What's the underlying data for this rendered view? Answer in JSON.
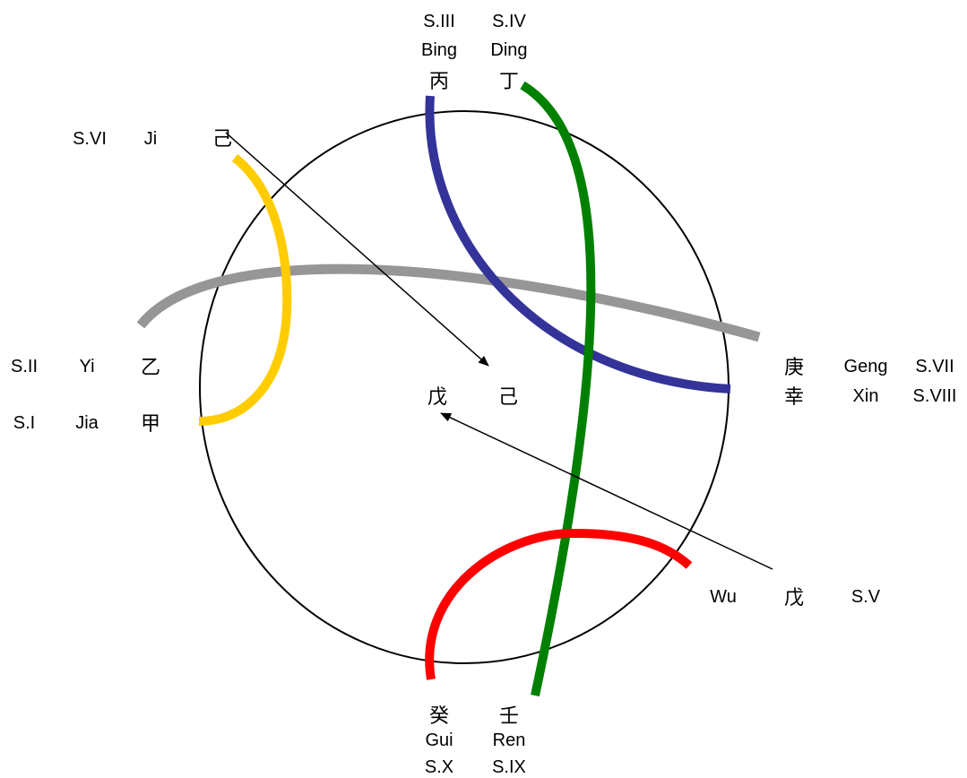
{
  "stems": {
    "jia": {
      "number": "S.I",
      "pinyin": "Jia",
      "char": "甲"
    },
    "yi": {
      "number": "S.II",
      "pinyin": "Yi",
      "char": "乙"
    },
    "bing": {
      "number": "S.III",
      "pinyin": "Bing",
      "char": "丙"
    },
    "ding": {
      "number": "S.IV",
      "pinyin": "Ding",
      "char": "丁"
    },
    "wu": {
      "number": "S.V",
      "pinyin": "Wu",
      "char": "戊"
    },
    "ji": {
      "number": "S.VI",
      "pinyin": "Ji",
      "char": "己"
    },
    "geng": {
      "number": "S.VII",
      "pinyin": "Geng",
      "char": "庚"
    },
    "xin": {
      "number": "S.VIII",
      "pinyin": "Xin",
      "char": "幸"
    },
    "ren": {
      "number": "S.IX",
      "pinyin": "Ren",
      "char": "壬"
    },
    "gui": {
      "number": "S.X",
      "pinyin": "Gui",
      "char": "癸"
    }
  },
  "center": {
    "wu_char": "戊",
    "ji_char": "己"
  },
  "colors": {
    "circle": "#000000",
    "arrows": "#000000",
    "jia_ji_arc": "#FFCC00",
    "bing_xin_arc": "#333399",
    "ding_ren_arc": "#008000",
    "yi_geng_arc": "#969696",
    "gui_wu_arc": "#FF0000"
  }
}
